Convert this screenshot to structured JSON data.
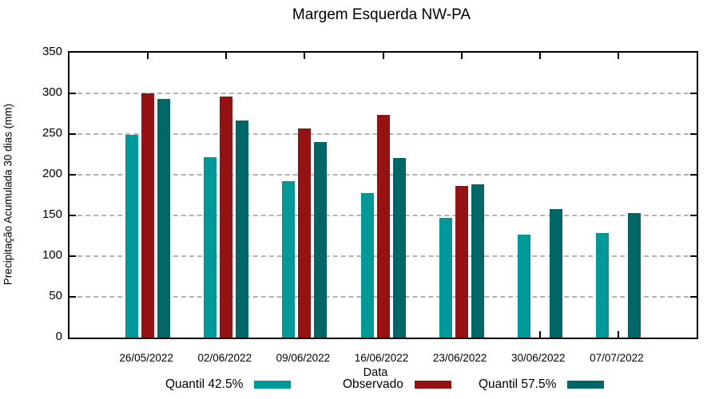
{
  "title": "Margem Esquerda NW-PA",
  "chart_data": {
    "type": "bar",
    "title": "Margem Esquerda NW-PA",
    "xlabel": "Data",
    "ylabel": "Precipitação Acumulada 30 dias (mm)",
    "ylim": [
      0,
      350
    ],
    "yticks": [
      0,
      50,
      100,
      150,
      200,
      250,
      300,
      350
    ],
    "grid": "horizontal-dashed",
    "grid_color": "#b3b3b3",
    "legend_position": "bottom",
    "categories": [
      "26/05/2022",
      "02/06/2022",
      "09/06/2022",
      "16/06/2022",
      "23/06/2022",
      "30/06/2022",
      "07/07/2022"
    ],
    "series": [
      {
        "name": "Quantil 42.5%",
        "color": "#009999",
        "values": [
          249,
          222,
          192,
          177,
          147,
          126,
          128
        ]
      },
      {
        "name": "Observado",
        "color": "#941212",
        "values": [
          300,
          296,
          257,
          274,
          186,
          null,
          null
        ]
      },
      {
        "name": "Quantil 57.5%",
        "color": "#006666",
        "values": [
          293,
          267,
          240,
          221,
          188,
          158,
          153
        ]
      }
    ]
  }
}
